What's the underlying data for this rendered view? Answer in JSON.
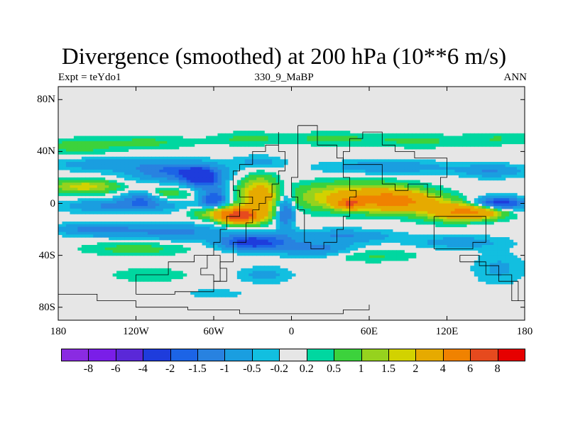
{
  "title": "Divergence (smoothed) at 200 hPa (10**6 m/s)",
  "subtitle_left": "Expt = teYdo1",
  "subtitle_center": "330_9_MaBP",
  "subtitle_right": "ANN",
  "y_ticks": [
    {
      "label": "80N",
      "lat": 80
    },
    {
      "label": "40N",
      "lat": 40
    },
    {
      "label": "0",
      "lat": 0
    },
    {
      "label": "40S",
      "lat": -40
    },
    {
      "label": "80S",
      "lat": -80
    }
  ],
  "x_ticks": [
    {
      "label": "180",
      "lon": -180
    },
    {
      "label": "120W",
      "lon": -120
    },
    {
      "label": "60W",
      "lon": -60
    },
    {
      "label": "0",
      "lon": 0
    },
    {
      "label": "60E",
      "lon": 60
    },
    {
      "label": "120E",
      "lon": 120
    },
    {
      "label": "180",
      "lon": 180
    }
  ],
  "colorbar": {
    "colors": [
      "#8a2be2",
      "#7a1ee8",
      "#5a28d8",
      "#1e3cdc",
      "#1c64e6",
      "#2882e0",
      "#1a9ee0",
      "#12bfe0",
      "#e6e6e6",
      "#00d7a0",
      "#3cd23c",
      "#96d21e",
      "#d2d200",
      "#e6aa00",
      "#f08200",
      "#e64a1e",
      "#e60000"
    ],
    "labels": [
      "-8",
      "-6",
      "-4",
      "-2",
      "-1.5",
      "-1",
      "-0.5",
      "-0.2",
      "0.2",
      "0.5",
      "1",
      "1.5",
      "2",
      "4",
      "6",
      "8"
    ]
  },
  "field": {
    "type": "filled-contour",
    "x_range": [
      -180,
      180
    ],
    "y_range": [
      -90,
      90
    ],
    "blobs": [
      {
        "lon": -165,
        "lat": 44,
        "rx": 30,
        "ry": 6,
        "v": 0.7
      },
      {
        "lon": -110,
        "lat": 47,
        "rx": 35,
        "ry": 5,
        "v": 0.6
      },
      {
        "lon": -35,
        "lat": 50,
        "rx": 25,
        "ry": 5,
        "v": 0.6
      },
      {
        "lon": 30,
        "lat": 50,
        "rx": 40,
        "ry": 5,
        "v": 0.6
      },
      {
        "lon": 100,
        "lat": 48,
        "rx": 35,
        "ry": 5,
        "v": 0.6
      },
      {
        "lon": 160,
        "lat": 50,
        "rx": 25,
        "ry": 5,
        "v": 0.5
      },
      {
        "lon": -150,
        "lat": 30,
        "rx": 35,
        "ry": 5,
        "v": -0.8
      },
      {
        "lon": -90,
        "lat": 25,
        "rx": 35,
        "ry": 8,
        "v": -1.6
      },
      {
        "lon": -70,
        "lat": 20,
        "rx": 14,
        "ry": 7,
        "v": -2.5
      },
      {
        "lon": -25,
        "lat": 32,
        "rx": 18,
        "ry": 5,
        "v": -0.7
      },
      {
        "lon": 75,
        "lat": 28,
        "rx": 50,
        "ry": 5,
        "v": -0.9
      },
      {
        "lon": 155,
        "lat": 25,
        "rx": 25,
        "ry": 5,
        "v": -1.0
      },
      {
        "lon": -160,
        "lat": 13,
        "rx": 25,
        "ry": 5,
        "v": 1.8
      },
      {
        "lon": -100,
        "lat": 8,
        "rx": 20,
        "ry": 5,
        "v": 1.0
      },
      {
        "lon": -115,
        "lat": 5,
        "rx": 15,
        "ry": 6,
        "v": -1.5
      },
      {
        "lon": -60,
        "lat": 3,
        "rx": 10,
        "ry": 10,
        "v": -2.0
      },
      {
        "lon": -130,
        "lat": -2,
        "rx": 45,
        "ry": 5,
        "v": -1.2
      },
      {
        "lon": -25,
        "lat": 5,
        "rx": 14,
        "ry": 14,
        "v": 2.8
      },
      {
        "lon": -5,
        "lat": -5,
        "rx": 7,
        "ry": 15,
        "v": -1.8
      },
      {
        "lon": 50,
        "lat": 5,
        "rx": 45,
        "ry": 10,
        "v": 2.5
      },
      {
        "lon": 80,
        "lat": 2,
        "rx": 25,
        "ry": 7,
        "v": 4.0
      },
      {
        "lon": 45,
        "lat": 0,
        "rx": 10,
        "ry": 4,
        "v": 4.5
      },
      {
        "lon": 120,
        "lat": -5,
        "rx": 25,
        "ry": 8,
        "v": 2.0
      },
      {
        "lon": 140,
        "lat": -7,
        "rx": 22,
        "ry": 5,
        "v": 3.5
      },
      {
        "lon": 160,
        "lat": 0,
        "rx": 20,
        "ry": 5,
        "v": -2.5
      },
      {
        "lon": -40,
        "lat": -10,
        "rx": 15,
        "ry": 5,
        "v": 6.0
      },
      {
        "lon": -50,
        "lat": -7,
        "rx": 22,
        "ry": 5,
        "v": 2.5
      },
      {
        "lon": -150,
        "lat": -20,
        "rx": 30,
        "ry": 5,
        "v": -1.3
      },
      {
        "lon": -90,
        "lat": -22,
        "rx": 35,
        "ry": 6,
        "v": -1.2
      },
      {
        "lon": 40,
        "lat": -25,
        "rx": 40,
        "ry": 5,
        "v": -1.0
      },
      {
        "lon": 130,
        "lat": -30,
        "rx": 35,
        "ry": 5,
        "v": -0.8
      },
      {
        "lon": -30,
        "lat": -30,
        "rx": 25,
        "ry": 6,
        "v": -2.5
      },
      {
        "lon": 20,
        "lat": -35,
        "rx": 30,
        "ry": 6,
        "v": -1.2
      },
      {
        "lon": -120,
        "lat": -35,
        "rx": 40,
        "ry": 5,
        "v": 0.7
      },
      {
        "lon": 60,
        "lat": -40,
        "rx": 35,
        "ry": 5,
        "v": 0.6
      },
      {
        "lon": 160,
        "lat": -50,
        "rx": 20,
        "ry": 12,
        "v": -0.6
      },
      {
        "lon": -20,
        "lat": -55,
        "rx": 20,
        "ry": 6,
        "v": -0.7
      },
      {
        "lon": -110,
        "lat": -55,
        "rx": 30,
        "ry": 5,
        "v": 0.5
      },
      {
        "lon": -60,
        "lat": -70,
        "rx": 25,
        "ry": 4,
        "v": -0.6
      },
      {
        "lon": -120,
        "lat": -75,
        "rx": 20,
        "ry": 5,
        "v": 0.4
      }
    ]
  },
  "coastlines": [
    [
      [
        -10,
        55
      ],
      [
        -10,
        45
      ],
      [
        -20,
        40
      ],
      [
        -30,
        30
      ],
      [
        -40,
        25
      ],
      [
        -45,
        20
      ],
      [
        -45,
        10
      ],
      [
        -40,
        5
      ],
      [
        -30,
        0
      ],
      [
        -40,
        -10
      ],
      [
        -50,
        -20
      ],
      [
        -55,
        -30
      ],
      [
        -60,
        -40
      ],
      [
        -65,
        -50
      ],
      [
        -70,
        -55
      ],
      [
        -60,
        -60
      ],
      [
        -55,
        -45
      ],
      [
        -45,
        -30
      ],
      [
        -35,
        -15
      ],
      [
        -30,
        -5
      ],
      [
        -25,
        0
      ],
      [
        -20,
        5
      ],
      [
        -15,
        15
      ],
      [
        -10,
        25
      ],
      [
        -5,
        40
      ],
      [
        -10,
        55
      ]
    ],
    [
      [
        5,
        60
      ],
      [
        15,
        60
      ],
      [
        20,
        45
      ],
      [
        35,
        35
      ],
      [
        40,
        20
      ],
      [
        45,
        10
      ],
      [
        50,
        5
      ],
      [
        45,
        -10
      ],
      [
        40,
        -20
      ],
      [
        35,
        -30
      ],
      [
        25,
        -35
      ],
      [
        15,
        -30
      ],
      [
        10,
        -20
      ],
      [
        10,
        -5
      ],
      [
        5,
        5
      ],
      [
        0,
        20
      ],
      [
        5,
        35
      ],
      [
        5,
        60
      ]
    ],
    [
      [
        40,
        30
      ],
      [
        60,
        30
      ],
      [
        70,
        15
      ],
      [
        80,
        10
      ],
      [
        90,
        15
      ],
      [
        100,
        15
      ],
      [
        105,
        5
      ],
      [
        115,
        10
      ],
      [
        115,
        20
      ],
      [
        120,
        25
      ],
      [
        120,
        35
      ],
      [
        95,
        40
      ],
      [
        80,
        45
      ],
      [
        70,
        55
      ],
      [
        55,
        50
      ],
      [
        45,
        40
      ],
      [
        40,
        30
      ]
    ],
    [
      [
        110,
        -10
      ],
      [
        130,
        -10
      ],
      [
        145,
        -10
      ],
      [
        150,
        -20
      ],
      [
        150,
        -30
      ],
      [
        140,
        -35
      ],
      [
        120,
        -35
      ],
      [
        110,
        -25
      ],
      [
        110,
        -10
      ]
    ],
    [
      [
        130,
        -45
      ],
      [
        140,
        -45
      ],
      [
        150,
        -55
      ],
      [
        160,
        -60
      ],
      [
        175,
        -75
      ],
      [
        180,
        -75
      ],
      [
        170,
        -55
      ],
      [
        160,
        -48
      ],
      [
        145,
        -40
      ],
      [
        130,
        -45
      ]
    ],
    [
      [
        -180,
        -70
      ],
      [
        -150,
        -75
      ],
      [
        -120,
        -80
      ],
      [
        -80,
        -82
      ],
      [
        -40,
        -85
      ],
      [
        0,
        -85
      ],
      [
        40,
        -82
      ],
      [
        60,
        -78
      ]
    ],
    [
      [
        -120,
        -70
      ],
      [
        -90,
        -68
      ],
      [
        -60,
        -60
      ],
      [
        -50,
        -50
      ],
      [
        -55,
        -40
      ],
      [
        -75,
        -45
      ],
      [
        -95,
        -55
      ],
      [
        -120,
        -70
      ]
    ]
  ]
}
